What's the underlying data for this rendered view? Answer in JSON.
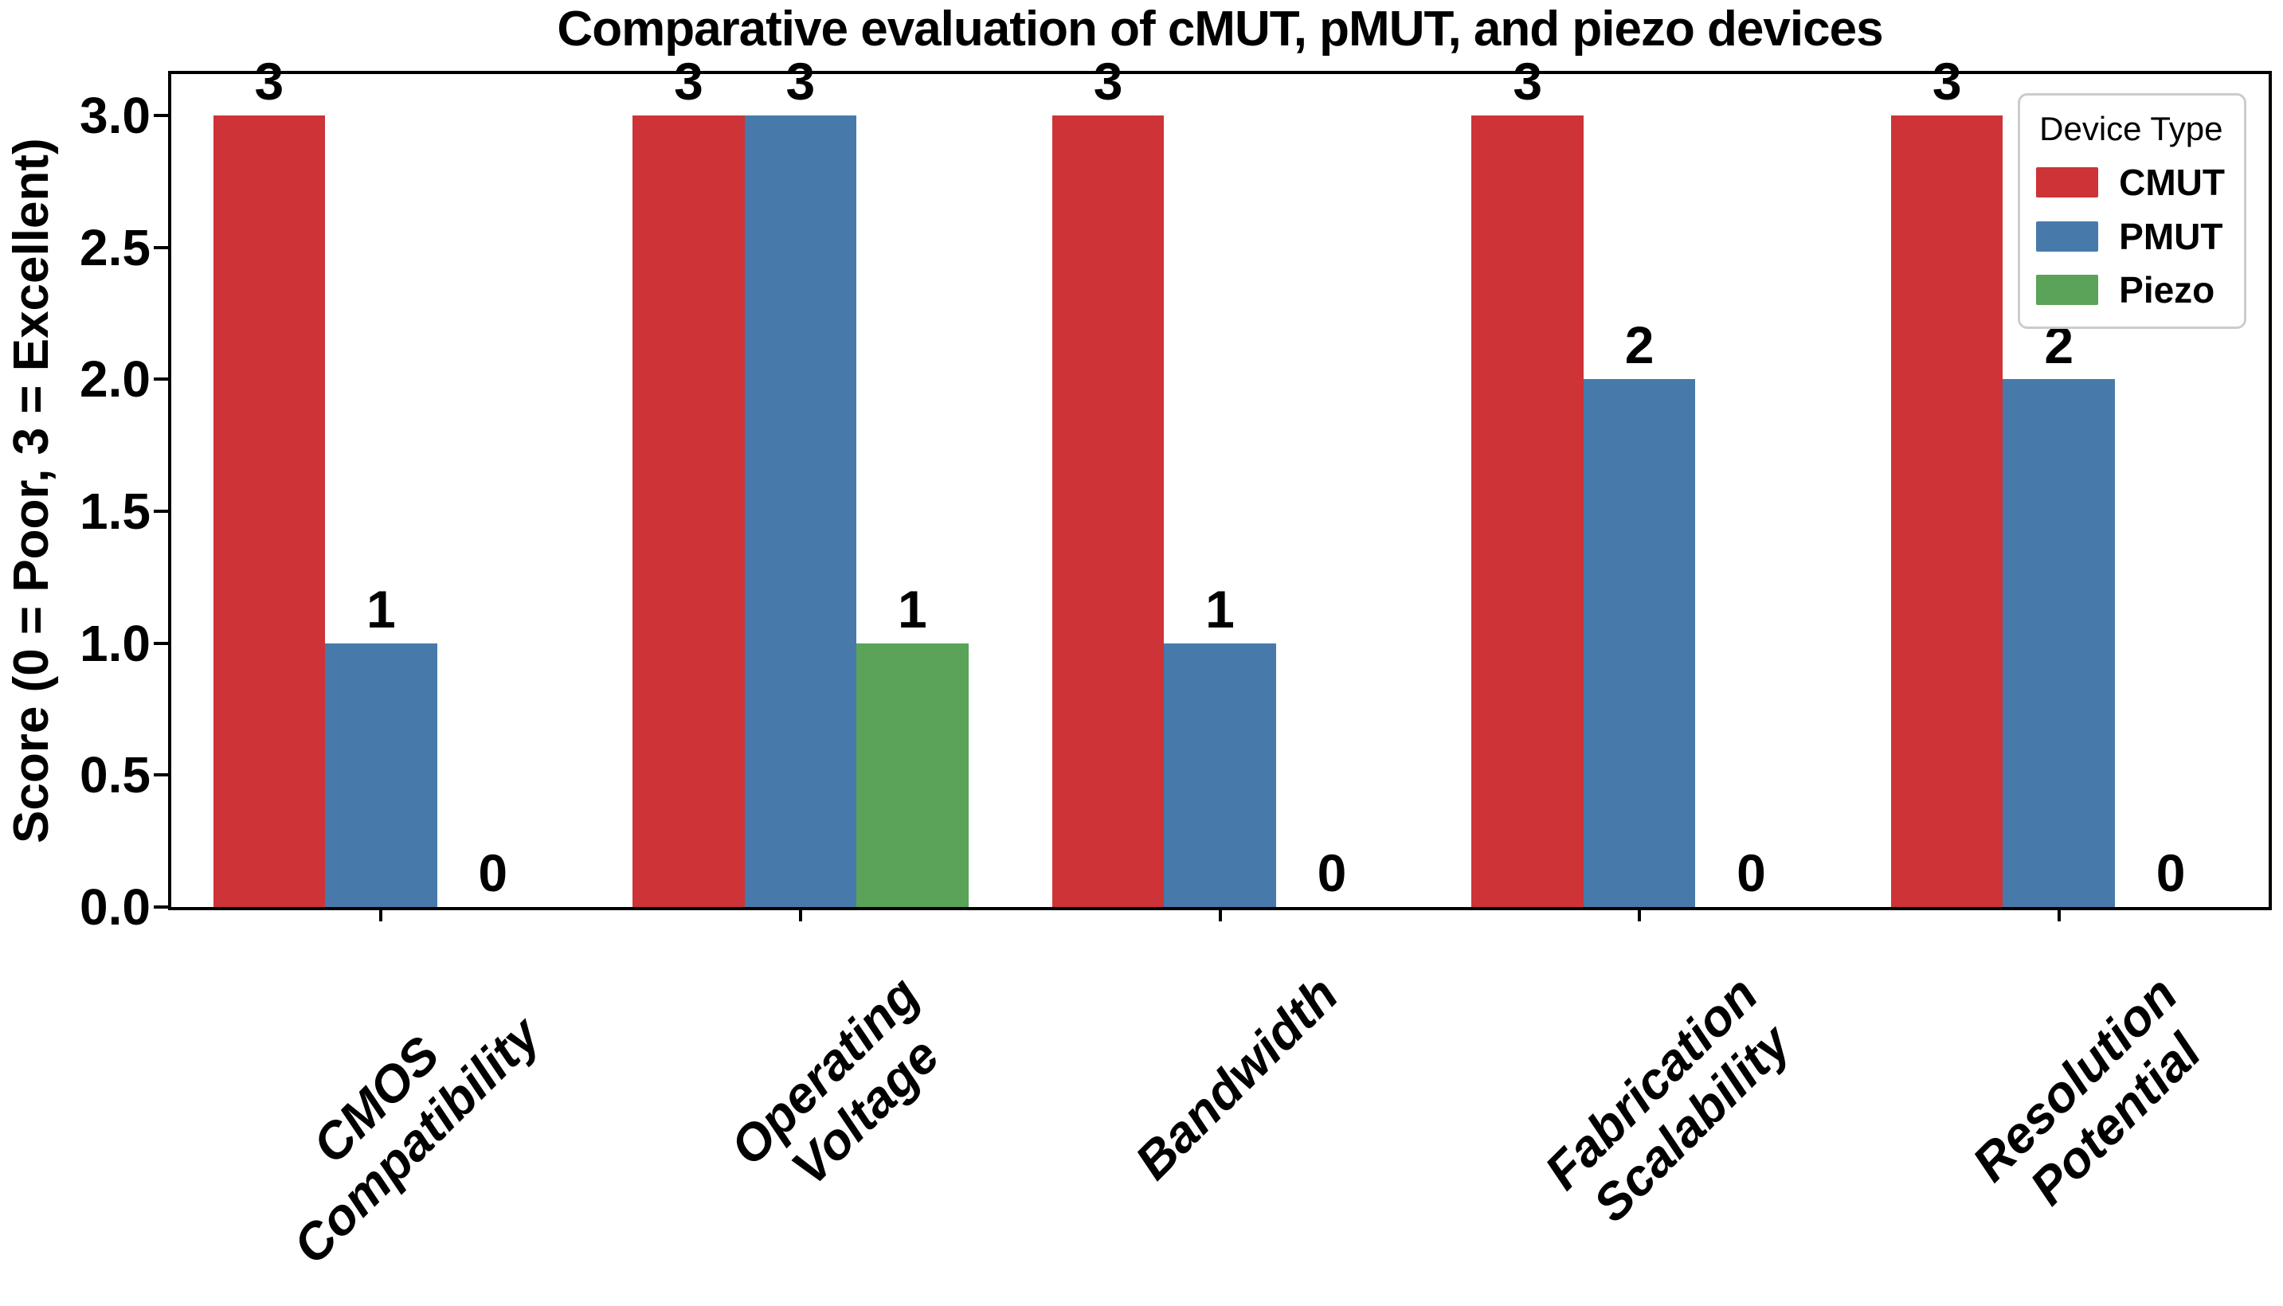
{
  "chart_data": {
    "type": "bar",
    "title": "Comparative evaluation of cMUT, pMUT, and piezo devices",
    "ylabel": "Score (0 = Poor, 3 = Excellent)",
    "xlabel": "",
    "categories": [
      "CMOS\nCompatibility",
      "Operating\nVoltage",
      "Bandwidth",
      "Fabrication\nScalability",
      "Resolution\nPotential"
    ],
    "series": [
      {
        "name": "CMUT",
        "color": "#cd3337",
        "values": [
          3,
          3,
          3,
          3,
          3
        ]
      },
      {
        "name": "PMUT",
        "color": "#477aab",
        "values": [
          1,
          3,
          1,
          2,
          2
        ]
      },
      {
        "name": "Piezo",
        "color": "#5aa359",
        "values": [
          0,
          1,
          0,
          0,
          0
        ]
      }
    ],
    "bar_value_labels": true,
    "ylim": [
      0,
      3.157
    ],
    "yticks": [
      "0.0",
      "0.5",
      "1.0",
      "1.5",
      "2.0",
      "2.5",
      "3.0"
    ],
    "legend": {
      "title": "Device Type",
      "position": "upper right"
    },
    "grid": false,
    "group_width_fraction": 0.8,
    "axis_color": "#000000",
    "background_color": "#ffffff"
  }
}
